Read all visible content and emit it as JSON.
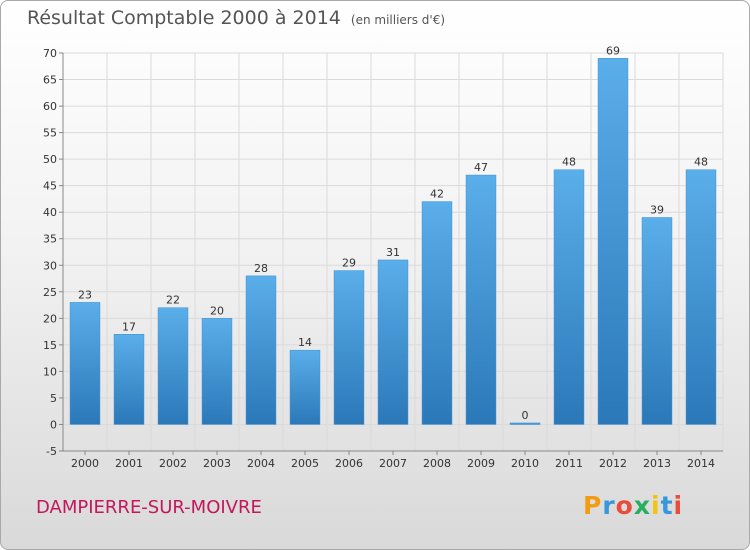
{
  "chart_data": {
    "type": "bar",
    "title": "Résultat Comptable 2000 à 2014",
    "subtitle": "(en milliers d'€)",
    "categories": [
      "2000",
      "2001",
      "2002",
      "2003",
      "2004",
      "2005",
      "2006",
      "2007",
      "2008",
      "2009",
      "2010",
      "2011",
      "2012",
      "2013",
      "2014"
    ],
    "values": [
      23,
      17,
      22,
      20,
      28,
      14,
      29,
      31,
      42,
      47,
      0,
      48,
      69,
      39,
      48
    ],
    "ylim": [
      -5,
      70
    ],
    "yticks": [
      -5,
      0,
      5,
      10,
      15,
      20,
      25,
      30,
      35,
      40,
      45,
      50,
      55,
      60,
      65,
      70
    ],
    "grid": true,
    "bar_color": "#4a9ee0",
    "xlabel": "",
    "ylabel": ""
  },
  "footer": {
    "commune": "DAMPIERRE-SUR-MOIVRE",
    "logo_text": "Proxiti",
    "commune_color": "#c2185b",
    "logo_colors": [
      "#f39c12",
      "#3498db",
      "#e74c3c",
      "#27ae60",
      "#f1c40f",
      "#3498db",
      "#e74c3c"
    ]
  }
}
